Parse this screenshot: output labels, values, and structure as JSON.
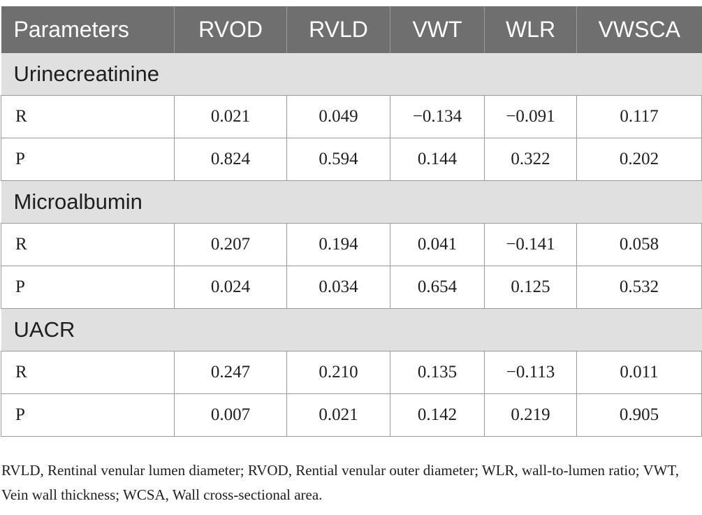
{
  "table": {
    "headers": [
      "Parameters",
      "RVOD",
      "RVLD",
      "VWT",
      "WLR",
      "VWSCA"
    ],
    "groups": [
      {
        "name": "Urinecreatinine",
        "rows": [
          {
            "label": "R",
            "values": [
              "0.021",
              "0.049",
              "−0.134",
              "−0.091",
              "0.117"
            ]
          },
          {
            "label": "P",
            "values": [
              "0.824",
              "0.594",
              "0.144",
              "0.322",
              "0.202"
            ]
          }
        ]
      },
      {
        "name": "Microalbumin",
        "rows": [
          {
            "label": "R",
            "values": [
              "0.207",
              "0.194",
              "0.041",
              "−0.141",
              "0.058"
            ]
          },
          {
            "label": "P",
            "values": [
              "0.024",
              "0.034",
              "0.654",
              "0.125",
              "0.532"
            ]
          }
        ]
      },
      {
        "name": "UACR",
        "rows": [
          {
            "label": "R",
            "values": [
              "0.247",
              "0.210",
              "0.135",
              "−0.113",
              "0.011"
            ]
          },
          {
            "label": "P",
            "values": [
              "0.007",
              "0.021",
              "0.142",
              "0.219",
              "0.905"
            ]
          }
        ]
      }
    ]
  },
  "footnote": "RVLD, Rentinal venular lumen diameter; RVOD, Rential venular outer diameter; WLR, wall-to-lumen ratio; VWT, Vein wall thickness; WCSA, Wall cross-sectional area."
}
